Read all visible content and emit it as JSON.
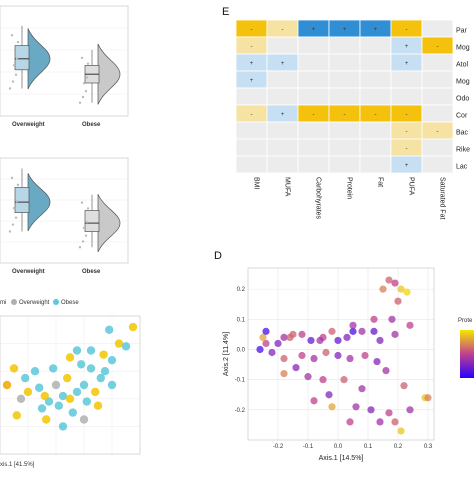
{
  "panels": {
    "E": {
      "letter": "E"
    },
    "D": {
      "letter": "D"
    }
  },
  "chart_data": [
    {
      "id": "violin-top",
      "type": "violin",
      "categories": [
        "Overweight",
        "Obese"
      ],
      "fill_colors": [
        "#6aa9c4",
        "#c9c9c9"
      ],
      "box_colors": [
        "#b8d7e6",
        "#dedede"
      ],
      "series": [
        {
          "category": "Overweight",
          "q1": 0.42,
          "median": 0.52,
          "q3": 0.64,
          "min": 0.25,
          "max": 0.82
        },
        {
          "category": "Obese",
          "q1": 0.3,
          "median": 0.38,
          "q3": 0.46,
          "min": 0.12,
          "max": 0.6
        }
      ]
    },
    {
      "id": "violin-middle",
      "type": "violin",
      "categories": [
        "Overweight",
        "Obese"
      ],
      "fill_colors": [
        "#6aa9c4",
        "#c9c9c9"
      ],
      "box_colors": [
        "#b8d7e6",
        "#dedede"
      ],
      "series": [
        {
          "category": "Overweight",
          "q1": 0.48,
          "median": 0.58,
          "q3": 0.72,
          "min": 0.3,
          "max": 0.9
        },
        {
          "category": "Obese",
          "q1": 0.3,
          "median": 0.38,
          "q3": 0.5,
          "min": 0.15,
          "max": 0.65
        }
      ]
    },
    {
      "id": "pcoa-left",
      "type": "scatter",
      "legend": [
        "Overweight",
        "Obese"
      ],
      "legend_prefix": "mi",
      "legend_colors": [
        "#b0b0b0",
        "#5cc8d8"
      ],
      "extra_color": "#f2c400",
      "xlabel": "xis.1  [41.5%]",
      "points": [
        [
          0.12,
          0.28,
          "y"
        ],
        [
          0.2,
          0.45,
          "y"
        ],
        [
          0.05,
          0.5,
          "o"
        ],
        [
          0.18,
          0.55,
          "b"
        ],
        [
          0.3,
          0.33,
          "b"
        ],
        [
          0.35,
          0.38,
          "b"
        ],
        [
          0.42,
          0.35,
          "b"
        ],
        [
          0.45,
          0.42,
          "b"
        ],
        [
          0.5,
          0.4,
          "y"
        ],
        [
          0.55,
          0.45,
          "b"
        ],
        [
          0.6,
          0.5,
          "b"
        ],
        [
          0.62,
          0.38,
          "b"
        ],
        [
          0.68,
          0.45,
          "y"
        ],
        [
          0.72,
          0.55,
          "b"
        ],
        [
          0.75,
          0.6,
          "b"
        ],
        [
          0.65,
          0.62,
          "b"
        ],
        [
          0.58,
          0.65,
          "b"
        ],
        [
          0.5,
          0.7,
          "y"
        ],
        [
          0.55,
          0.75,
          "b"
        ],
        [
          0.65,
          0.75,
          "b"
        ],
        [
          0.8,
          0.68,
          "b"
        ],
        [
          0.85,
          0.8,
          "y"
        ],
        [
          0.95,
          0.92,
          "y"
        ],
        [
          0.78,
          0.9,
          "b"
        ],
        [
          0.9,
          0.78,
          "b"
        ],
        [
          0.4,
          0.5,
          "g"
        ],
        [
          0.33,
          0.25,
          "y"
        ],
        [
          0.25,
          0.6,
          "b"
        ],
        [
          0.15,
          0.4,
          "g"
        ],
        [
          0.28,
          0.48,
          "b"
        ],
        [
          0.48,
          0.55,
          "y"
        ],
        [
          0.7,
          0.35,
          "y"
        ],
        [
          0.6,
          0.25,
          "g"
        ],
        [
          0.8,
          0.5,
          "b"
        ],
        [
          0.38,
          0.62,
          "b"
        ],
        [
          0.1,
          0.62,
          "y"
        ],
        [
          0.32,
          0.42,
          "y"
        ],
        [
          0.52,
          0.3,
          "b"
        ],
        [
          0.74,
          0.72,
          "y"
        ],
        [
          0.45,
          0.2,
          "b"
        ]
      ]
    },
    {
      "id": "heatmap-E",
      "type": "heatmap",
      "columns": [
        "BMI",
        "MUFA",
        "Carbohyrates",
        "Protein",
        "Fat",
        "PUFA",
        "Saturated Fat"
      ],
      "rows": [
        "Par",
        "Mog",
        "Atol",
        "Mog",
        "Odo",
        "Cor",
        "Bac",
        "Rike",
        "Lac"
      ],
      "colors": {
        "pos": "#2f8ed4",
        "pos_light": "#c7dff2",
        "neg": "#f4c20d",
        "neg_light": "#f6e3a4",
        "none": "#ececec"
      },
      "cells": [
        [
          "neg",
          "neg_light",
          "pos",
          "pos",
          "pos",
          "neg",
          "none"
        ],
        [
          "neg_light",
          "none",
          "none",
          "none",
          "none",
          "pos_light",
          "neg"
        ],
        [
          "pos_light",
          "pos_light",
          "none",
          "none",
          "none",
          "pos_light",
          "none"
        ],
        [
          "pos_light",
          "none",
          "none",
          "none",
          "none",
          "none",
          "none"
        ],
        [
          "none",
          "none",
          "none",
          "none",
          "none",
          "none",
          "none"
        ],
        [
          "neg_light",
          "pos_light",
          "neg",
          "neg",
          "neg",
          "neg",
          "none"
        ],
        [
          "none",
          "none",
          "none",
          "none",
          "none",
          "neg_light",
          "neg_light"
        ],
        [
          "none",
          "none",
          "none",
          "none",
          "none",
          "neg_light",
          "none"
        ],
        [
          "none",
          "none",
          "none",
          "none",
          "none",
          "pos_light",
          "none"
        ]
      ],
      "signs": [
        [
          "-",
          "-",
          "+",
          "+",
          "+",
          "-",
          ""
        ],
        [
          "-",
          "",
          "",
          "",
          "",
          "+",
          "-"
        ],
        [
          "+",
          "+",
          "",
          "",
          "",
          "+",
          ""
        ],
        [
          "+",
          "",
          "",
          "",
          "",
          "",
          ""
        ],
        [
          "",
          "",
          "",
          "",
          "",
          "",
          ""
        ],
        [
          "-",
          "+",
          "-",
          "-",
          "-",
          "-",
          ""
        ],
        [
          "",
          "",
          "",
          "",
          "",
          "-",
          "-"
        ],
        [
          "",
          "",
          "",
          "",
          "",
          "-",
          ""
        ],
        [
          "",
          "",
          "",
          "",
          "",
          "+",
          ""
        ]
      ]
    },
    {
      "id": "pcoa-D",
      "type": "scatter",
      "xlabel": "Axis.1  [14.5%]",
      "ylabel": "Axis.2  [11.4%]",
      "xlim": [
        -0.3,
        0.32
      ],
      "ylim": [
        -0.3,
        0.27
      ],
      "xticks": [
        -0.2,
        -0.1,
        0.0,
        0.1,
        0.2,
        0.3
      ],
      "yticks": [
        -0.2,
        -0.1,
        0.0,
        0.1,
        0.2
      ],
      "xtick_labels": [
        "-0.2",
        "-0.1",
        "0.0",
        "0.1",
        "0.2",
        "0.3"
      ],
      "ytick_labels": [
        "-0.2",
        "-0.1",
        "0.0",
        "0.1",
        "0.2"
      ],
      "legend_title": "Prote",
      "gradient": [
        "#2a00ff",
        "#c0408e",
        "#f7e600"
      ],
      "points": [
        [
          0.17,
          0.23,
          0.6
        ],
        [
          0.19,
          0.22,
          0.5
        ],
        [
          0.15,
          0.2,
          0.7
        ],
        [
          0.21,
          0.2,
          0.9
        ],
        [
          0.23,
          0.19,
          0.95
        ],
        [
          0.2,
          0.16,
          0.6
        ],
        [
          0.18,
          0.1,
          0.4
        ],
        [
          0.24,
          0.08,
          0.5
        ],
        [
          0.19,
          0.05,
          0.4
        ],
        [
          0.14,
          0.03,
          0.3
        ],
        [
          0.12,
          0.06,
          0.2
        ],
        [
          0.08,
          0.06,
          0.4
        ],
        [
          0.05,
          0.06,
          0.1
        ],
        [
          0.03,
          0.04,
          0.3
        ],
        [
          -0.02,
          0.06,
          0.6
        ],
        [
          -0.05,
          0.04,
          0.5
        ],
        [
          -0.06,
          0.03,
          0.4
        ],
        [
          -0.09,
          0.03,
          0.2
        ],
        [
          -0.12,
          0.05,
          0.5
        ],
        [
          -0.15,
          0.05,
          0.6
        ],
        [
          -0.18,
          0.04,
          0.4
        ],
        [
          -0.2,
          0.02,
          0.3
        ],
        [
          -0.24,
          0.02,
          0.5
        ],
        [
          -0.26,
          0.0,
          0.1
        ],
        [
          -0.25,
          0.04,
          0.8
        ],
        [
          -0.22,
          -0.01,
          0.3
        ],
        [
          -0.18,
          -0.03,
          0.6
        ],
        [
          -0.12,
          -0.02,
          0.5
        ],
        [
          -0.08,
          -0.03,
          0.4
        ],
        [
          -0.04,
          -0.01,
          0.6
        ],
        [
          0.0,
          -0.02,
          0.3
        ],
        [
          0.04,
          -0.03,
          0.4
        ],
        [
          0.09,
          -0.02,
          0.5
        ],
        [
          0.13,
          -0.04,
          0.3
        ],
        [
          0.16,
          -0.07,
          0.4
        ],
        [
          -0.14,
          -0.06,
          0.3
        ],
        [
          -0.18,
          -0.08,
          0.7
        ],
        [
          -0.1,
          -0.09,
          0.4
        ],
        [
          -0.05,
          -0.1,
          0.5
        ],
        [
          0.02,
          -0.1,
          0.6
        ],
        [
          0.08,
          -0.13,
          0.4
        ],
        [
          -0.03,
          -0.15,
          0.3
        ],
        [
          -0.08,
          -0.17,
          0.5
        ],
        [
          -0.02,
          -0.19,
          0.8
        ],
        [
          0.06,
          -0.19,
          0.4
        ],
        [
          0.11,
          -0.2,
          0.3
        ],
        [
          0.17,
          -0.21,
          0.5
        ],
        [
          0.19,
          -0.24,
          0.6
        ],
        [
          0.21,
          -0.27,
          0.9
        ],
        [
          0.14,
          -0.24,
          0.4
        ],
        [
          0.04,
          -0.24,
          0.5
        ],
        [
          0.29,
          -0.16,
          0.9
        ],
        [
          0.3,
          -0.16,
          0.7
        ],
        [
          0.22,
          -0.12,
          0.6
        ],
        [
          0.24,
          -0.2,
          0.4
        ],
        [
          -0.16,
          0.04,
          0.6
        ],
        [
          -0.24,
          0.06,
          0.1
        ],
        [
          0.0,
          0.03,
          0.2
        ],
        [
          0.05,
          0.08,
          0.4
        ],
        [
          0.12,
          0.1,
          0.5
        ]
      ]
    }
  ]
}
